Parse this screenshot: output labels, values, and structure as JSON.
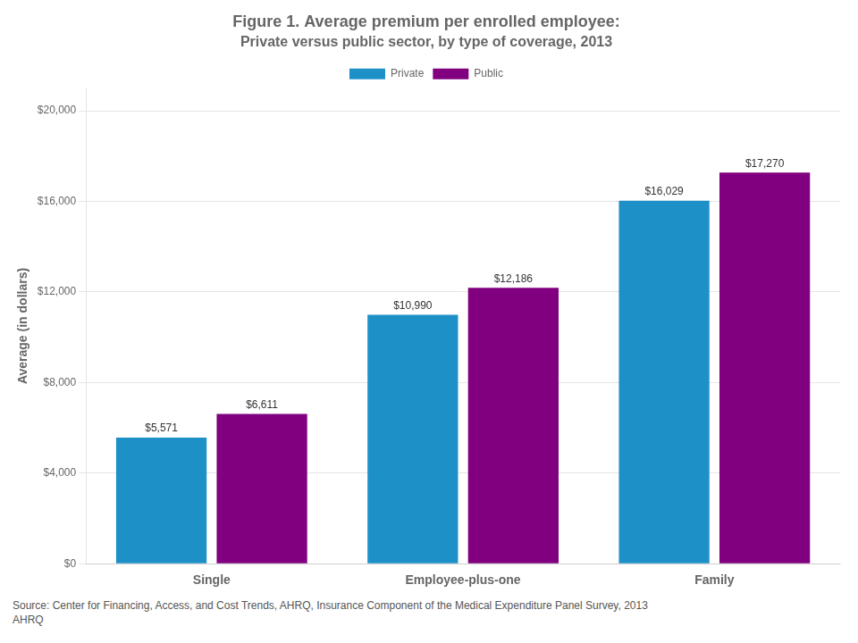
{
  "chart_data": {
    "type": "bar",
    "title": "Figure 1. Average premium per enrolled employee:",
    "subtitle": "Private versus public sector, by type of coverage, 2013",
    "y_label": "Average (in dollars)",
    "categories": [
      "Single",
      "Employee-plus-one",
      "Family"
    ],
    "series": [
      {
        "name": "Private",
        "color": "#1e90c8",
        "values": [
          5571,
          10990,
          16029
        ],
        "value_labels": [
          "$5,571",
          "$10,990",
          "$16,029"
        ]
      },
      {
        "name": "Public",
        "color": "#800080",
        "values": [
          6611,
          12186,
          17270
        ],
        "value_labels": [
          "$6,611",
          "$12,186",
          "$17,270"
        ]
      }
    ],
    "ylim": [
      0,
      21000
    ],
    "yticks": [
      {
        "value": 0,
        "label": "$0"
      },
      {
        "value": 4000,
        "label": "$4,000"
      },
      {
        "value": 8000,
        "label": "$8,000"
      },
      {
        "value": 12000,
        "label": "$12,000"
      },
      {
        "value": 16000,
        "label": "$16,000"
      },
      {
        "value": 20000,
        "label": "$20,000"
      }
    ],
    "grid": true,
    "data_labels": true,
    "annotations": [
      "Source: Center for Financing, Access, and Cost Trends, AHRQ, Insurance Component of the Medical Expenditure Panel Survey,  2013",
      "AHRQ"
    ]
  }
}
